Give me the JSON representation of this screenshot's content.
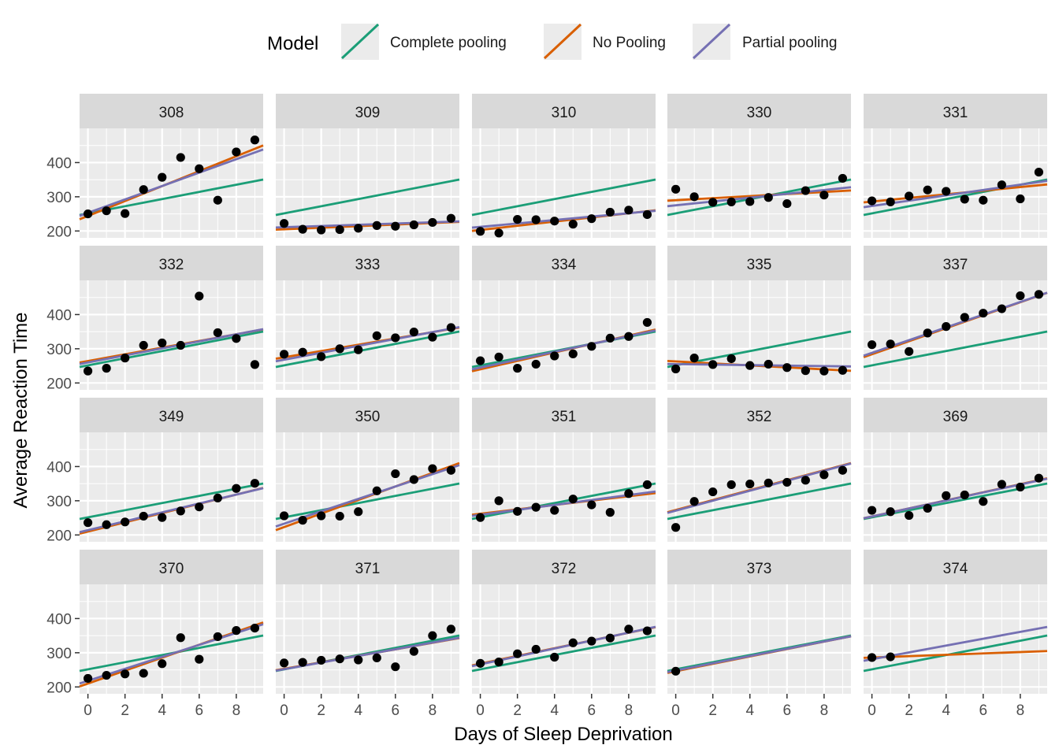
{
  "chart_data": {
    "type": "scatter",
    "xlabel": "Days of Sleep Deprivation",
    "ylabel": "Average Reaction Time",
    "x_ticks": [
      0,
      2,
      4,
      6,
      8
    ],
    "y_ticks": [
      200,
      300,
      400
    ],
    "xlim": [
      -0.45,
      9.45
    ],
    "ylim": [
      180,
      500
    ],
    "grid": true,
    "legend": {
      "title": "Model",
      "position": "top",
      "entries": [
        {
          "key": "complete",
          "label": "Complete pooling",
          "color": "#1B9E77"
        },
        {
          "key": "none",
          "label": "No Pooling",
          "color": "#D95F02"
        },
        {
          "key": "partial",
          "label": "Partial pooling",
          "color": "#7570B3"
        }
      ]
    },
    "complete_pooling": {
      "intercept": 251.4,
      "slope": 10.47
    },
    "panels": [
      {
        "subject": "308",
        "points": [
          [
            0,
            250
          ],
          [
            1,
            259
          ],
          [
            2,
            251
          ],
          [
            3,
            321
          ],
          [
            4,
            357
          ],
          [
            5,
            415
          ],
          [
            6,
            382
          ],
          [
            7,
            290
          ],
          [
            8,
            431
          ],
          [
            9,
            466
          ]
        ],
        "no_pooling": [
          244,
          21.8
        ],
        "partial_pooling": [
          253,
          19.6
        ]
      },
      {
        "subject": "309",
        "points": [
          [
            0,
            222
          ],
          [
            1,
            205
          ],
          [
            2,
            203
          ],
          [
            3,
            204
          ],
          [
            4,
            208
          ],
          [
            5,
            216
          ],
          [
            6,
            214
          ],
          [
            7,
            218
          ],
          [
            8,
            225
          ],
          [
            9,
            237
          ]
        ],
        "no_pooling": [
          205,
          2.3
        ],
        "partial_pooling": [
          211,
          1.8
        ]
      },
      {
        "subject": "310",
        "points": [
          [
            0,
            199
          ],
          [
            1,
            194
          ],
          [
            2,
            234
          ],
          [
            3,
            233
          ],
          [
            4,
            229
          ],
          [
            5,
            220
          ],
          [
            6,
            236
          ],
          [
            7,
            255
          ],
          [
            8,
            261
          ],
          [
            9,
            248
          ]
        ],
        "no_pooling": [
          203,
          6.1
        ],
        "partial_pooling": [
          212,
          5.0
        ]
      },
      {
        "subject": "330",
        "points": [
          [
            0,
            322
          ],
          [
            1,
            300
          ],
          [
            2,
            284
          ],
          [
            3,
            285
          ],
          [
            4,
            286
          ],
          [
            5,
            298
          ],
          [
            6,
            280
          ],
          [
            7,
            318
          ],
          [
            8,
            305
          ],
          [
            9,
            354
          ]
        ],
        "no_pooling": [
          290,
          3.0
        ],
        "partial_pooling": [
          275,
          5.6
        ]
      },
      {
        "subject": "331",
        "points": [
          [
            0,
            288
          ],
          [
            1,
            285
          ],
          [
            2,
            302
          ],
          [
            3,
            320
          ],
          [
            4,
            316
          ],
          [
            5,
            293
          ],
          [
            6,
            290
          ],
          [
            7,
            335
          ],
          [
            8,
            294
          ],
          [
            9,
            372
          ]
        ],
        "no_pooling": [
          286,
          5.3
        ],
        "partial_pooling": [
          273,
          7.8
        ]
      },
      {
        "subject": "332",
        "points": [
          [
            0,
            235
          ],
          [
            1,
            243
          ],
          [
            2,
            273
          ],
          [
            3,
            310
          ],
          [
            4,
            317
          ],
          [
            5,
            310
          ],
          [
            6,
            454
          ],
          [
            7,
            347
          ],
          [
            8,
            330
          ],
          [
            9,
            254
          ]
        ],
        "no_pooling": [
          264,
          9.8
        ],
        "partial_pooling": [
          260,
          10.3
        ]
      },
      {
        "subject": "333",
        "points": [
          [
            0,
            284
          ],
          [
            1,
            290
          ],
          [
            2,
            277
          ],
          [
            3,
            300
          ],
          [
            4,
            297
          ],
          [
            5,
            338
          ],
          [
            6,
            332
          ],
          [
            7,
            349
          ],
          [
            8,
            334
          ],
          [
            9,
            362
          ]
        ],
        "no_pooling": [
          275,
          9.2
        ],
        "partial_pooling": [
          268,
          10.1
        ]
      },
      {
        "subject": "334",
        "points": [
          [
            0,
            265
          ],
          [
            1,
            276
          ],
          [
            2,
            243
          ],
          [
            3,
            255
          ],
          [
            4,
            279
          ],
          [
            5,
            285
          ],
          [
            6,
            307
          ],
          [
            7,
            331
          ],
          [
            8,
            336
          ],
          [
            9,
            377
          ]
        ],
        "no_pooling": [
          240,
          12.3
        ],
        "partial_pooling": [
          245,
          11.5
        ]
      },
      {
        "subject": "335",
        "points": [
          [
            0,
            241
          ],
          [
            1,
            273
          ],
          [
            2,
            254
          ],
          [
            3,
            271
          ],
          [
            4,
            251
          ],
          [
            5,
            255
          ],
          [
            6,
            245
          ],
          [
            7,
            236
          ],
          [
            8,
            235
          ],
          [
            9,
            237
          ]
        ],
        "no_pooling": [
          263,
          -2.9
        ],
        "partial_pooling": [
          255,
          -0.7
        ]
      },
      {
        "subject": "337",
        "points": [
          [
            0,
            312
          ],
          [
            1,
            314
          ],
          [
            2,
            292
          ],
          [
            3,
            346
          ],
          [
            4,
            365
          ],
          [
            5,
            392
          ],
          [
            6,
            404
          ],
          [
            7,
            417
          ],
          [
            8,
            455
          ],
          [
            9,
            459
          ]
        ],
        "no_pooling": [
          284,
          19.0
        ],
        "partial_pooling": [
          288,
          18.6
        ]
      },
      {
        "subject": "349",
        "points": [
          [
            0,
            236
          ],
          [
            1,
            230
          ],
          [
            2,
            238
          ],
          [
            3,
            255
          ],
          [
            4,
            251
          ],
          [
            5,
            270
          ],
          [
            6,
            282
          ],
          [
            7,
            308
          ],
          [
            8,
            336
          ],
          [
            9,
            351
          ]
        ],
        "no_pooling": [
          210,
          13.5
        ],
        "partial_pooling": [
          214,
          13.0
        ]
      },
      {
        "subject": "350",
        "points": [
          [
            0,
            256
          ],
          [
            1,
            243
          ],
          [
            2,
            256
          ],
          [
            3,
            255
          ],
          [
            4,
            268
          ],
          [
            5,
            329
          ],
          [
            6,
            379
          ],
          [
            7,
            362
          ],
          [
            8,
            394
          ],
          [
            9,
            389
          ]
        ],
        "no_pooling": [
          223,
          19.8
        ],
        "partial_pooling": [
          233,
          18.1
        ]
      },
      {
        "subject": "351",
        "points": [
          [
            0,
            251
          ],
          [
            1,
            300
          ],
          [
            2,
            269
          ],
          [
            3,
            281
          ],
          [
            4,
            272
          ],
          [
            5,
            305
          ],
          [
            6,
            288
          ],
          [
            7,
            266
          ],
          [
            8,
            321
          ],
          [
            9,
            347
          ]
        ],
        "no_pooling": [
          262,
          6.4
        ],
        "partial_pooling": [
          259,
          7.2
        ]
      },
      {
        "subject": "352",
        "points": [
          [
            0,
            222
          ],
          [
            1,
            298
          ],
          [
            2,
            326
          ],
          [
            3,
            347
          ],
          [
            4,
            349
          ],
          [
            5,
            352
          ],
          [
            6,
            354
          ],
          [
            7,
            360
          ],
          [
            8,
            376
          ],
          [
            9,
            389
          ]
        ],
        "no_pooling": [
          273,
          14.5
        ],
        "partial_pooling": [
          271,
          14.6
        ]
      },
      {
        "subject": "369",
        "points": [
          [
            0,
            272
          ],
          [
            1,
            268
          ],
          [
            2,
            257
          ],
          [
            3,
            278
          ],
          [
            4,
            315
          ],
          [
            5,
            317
          ],
          [
            6,
            298
          ],
          [
            7,
            348
          ],
          [
            8,
            340
          ],
          [
            9,
            366
          ]
        ],
        "no_pooling": [
          254,
          11.8
        ],
        "partial_pooling": [
          254,
          11.7
        ]
      },
      {
        "subject": "370",
        "points": [
          [
            0,
            225
          ],
          [
            1,
            234
          ],
          [
            2,
            238
          ],
          [
            3,
            240
          ],
          [
            4,
            268
          ],
          [
            5,
            344
          ],
          [
            6,
            281
          ],
          [
            7,
            347
          ],
          [
            8,
            365
          ],
          [
            9,
            372
          ]
        ],
        "no_pooling": [
          210,
          18.9
        ],
        "partial_pooling": [
          218,
          17.5
        ]
      },
      {
        "subject": "371",
        "points": [
          [
            0,
            270
          ],
          [
            1,
            272
          ],
          [
            2,
            278
          ],
          [
            3,
            282
          ],
          [
            4,
            279
          ],
          [
            5,
            285
          ],
          [
            6,
            259
          ],
          [
            7,
            304
          ],
          [
            8,
            350
          ],
          [
            9,
            369
          ]
        ],
        "no_pooling": [
          253,
          9.5
        ],
        "partial_pooling": [
          252,
          9.7
        ]
      },
      {
        "subject": "372",
        "points": [
          [
            0,
            269
          ],
          [
            1,
            273
          ],
          [
            2,
            297
          ],
          [
            3,
            310
          ],
          [
            4,
            287
          ],
          [
            5,
            329
          ],
          [
            6,
            334
          ],
          [
            7,
            343
          ],
          [
            8,
            369
          ],
          [
            9,
            364
          ]
        ],
        "no_pooling": [
          268,
          11.3
        ],
        "partial_pooling": [
          266,
          11.6
        ]
      },
      {
        "subject": "373",
        "points": [
          [
            0,
            246
          ]
        ],
        "no_pooling": [
          246,
          10.8
        ],
        "partial_pooling": [
          248,
          10.6
        ]
      },
      {
        "subject": "374",
        "points": [
          [
            0,
            286
          ],
          [
            1,
            288
          ]
        ],
        "no_pooling": [
          286,
          2.0
        ],
        "partial_pooling": [
          281,
          10.0
        ]
      }
    ]
  }
}
